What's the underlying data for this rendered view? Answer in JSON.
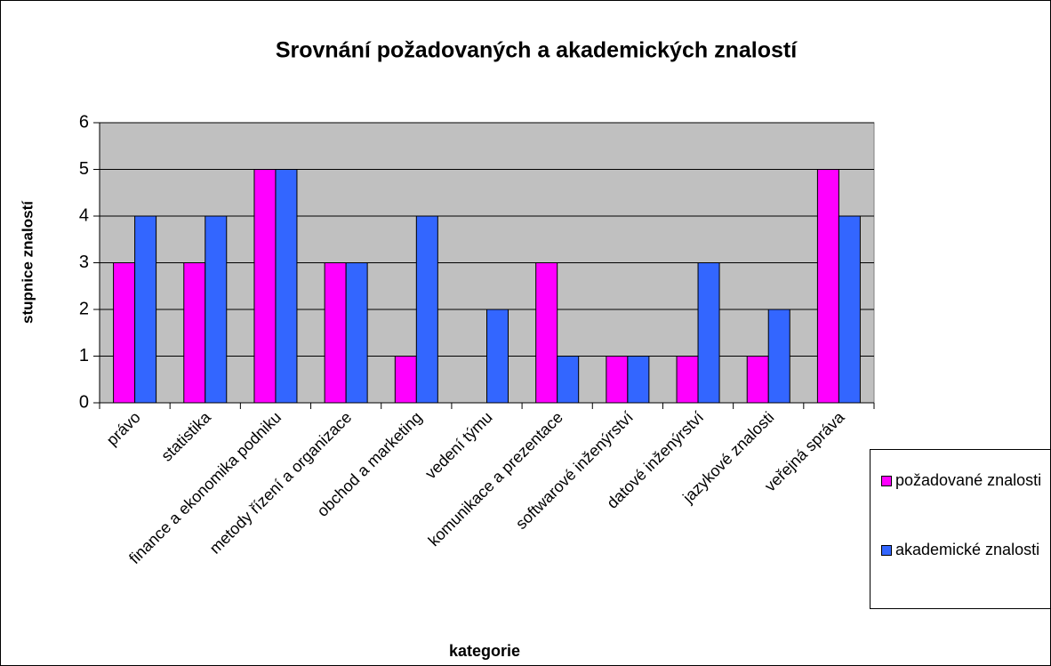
{
  "chart_data": {
    "type": "bar",
    "title": "Srovnání požadovaných a akademických znalostí",
    "x_label": "kategorie",
    "y_label": "stupnice znalostí",
    "categories": [
      "právo",
      "statistika",
      "finance a ekonomika podniku",
      "metody řízení a organizace",
      "obchod a marketing",
      "vedení týmu",
      "komunikace a prezentace",
      "softwarové inženýrství",
      "datové inženýrství",
      "jazykové znalosti",
      "veřejná správa"
    ],
    "series": [
      {
        "name": "požadované znalosti",
        "color": "#ff00ff",
        "values": [
          3,
          3,
          5,
          3,
          1,
          0,
          3,
          1,
          1,
          1,
          5
        ]
      },
      {
        "name": "akademické znalosti",
        "color": "#3366ff",
        "values": [
          4,
          4,
          5,
          3,
          4,
          2,
          1,
          1,
          3,
          2,
          4
        ]
      }
    ],
    "ylim": [
      0,
      6
    ],
    "yticks": [
      0,
      1,
      2,
      3,
      4,
      5,
      6
    ],
    "grid": true,
    "legend": "right"
  }
}
